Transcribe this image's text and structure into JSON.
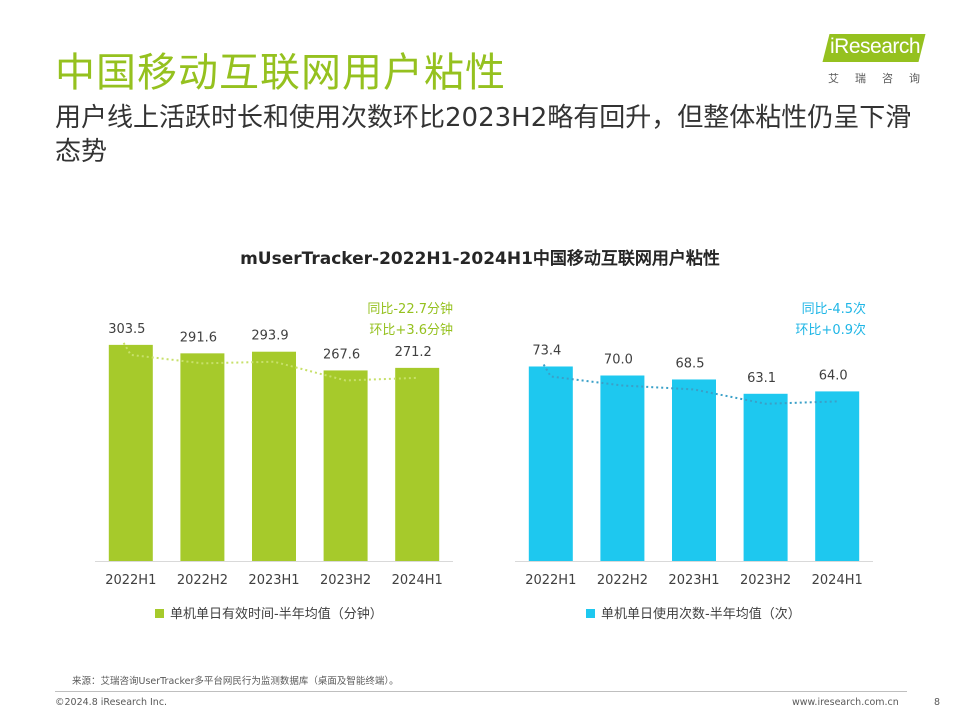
{
  "page": {
    "title": "中国移动互联网用户粘性",
    "subtitle": "用户线上活跃时长和使用次数环比2023H2略有回升，但整体粘性仍呈下滑态势",
    "logo_text": "iResearch",
    "logo_cn": "艾瑞咨询",
    "source": "来源：艾瑞咨询UserTracker多平台网民行为监测数据库（桌面及智能终端）。",
    "copyright": "©2024.8 iResearch Inc.",
    "website": "www.iresearch.com.cn",
    "page_number": "8",
    "colors": {
      "brand_green": "#95c11f",
      "bar_green": "#a6ca2b",
      "bar_blue": "#1ec8ef"
    }
  },
  "chart_data": [
    {
      "type": "bar",
      "title": "mUserTracker-2022H1-2024H1中国移动互联网用户粘性",
      "categories": [
        "2022H1",
        "2022H2",
        "2023H1",
        "2023H2",
        "2024H1"
      ],
      "series": [
        {
          "name": "单机单日有效时间-半年均值（分钟）",
          "values": [
            303.5,
            291.6,
            293.9,
            267.6,
            271.2
          ],
          "color": "#a6ca2b"
        }
      ],
      "trendline": {
        "style": "dotted",
        "color": "#c7e06a"
      },
      "annotations": [
        "同比-22.7分钟",
        "环比+3.6分钟"
      ],
      "annotation_color": "#95c11f",
      "ylim": [
        0,
        330
      ],
      "legend": "bottom"
    },
    {
      "type": "bar",
      "categories": [
        "2022H1",
        "2022H2",
        "2023H1",
        "2023H2",
        "2024H1"
      ],
      "series": [
        {
          "name": "单机单日使用次数-半年均值（次）",
          "values": [
            73.4,
            70.0,
            68.5,
            63.1,
            64.0
          ],
          "color": "#1ec8ef"
        }
      ],
      "trendline": {
        "style": "dotted",
        "color": "#3aa0c8"
      },
      "annotations": [
        "同比-4.5次",
        "环比+0.9次"
      ],
      "annotation_color": "#1fb6e6",
      "ylim": [
        0,
        80
      ],
      "legend": "bottom"
    }
  ]
}
